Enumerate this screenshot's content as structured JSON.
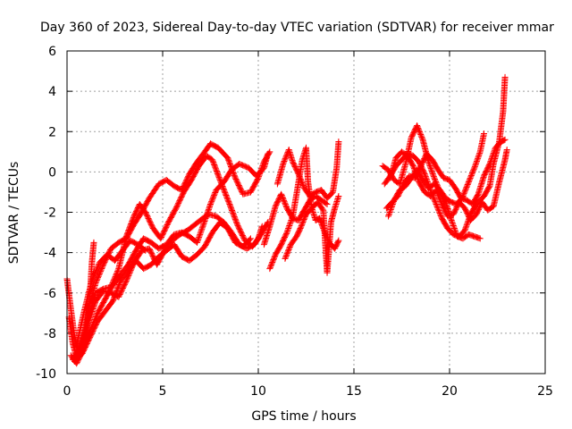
{
  "chart_data": {
    "type": "scatter",
    "title": "Day 360 of 2023, Sidereal Day-to-day VTEC variation (SDTVAR) for receiver mmar",
    "xlabel": "GPS time / hours",
    "ylabel": "SDTVAR / TECUs",
    "xlim": [
      0,
      25
    ],
    "ylim": [
      -10,
      6
    ],
    "xticks": [
      "0",
      "5",
      "10",
      "15",
      "20",
      "25"
    ],
    "yticks": [
      "-10",
      "-8",
      "-6",
      "-4",
      "-2",
      "0",
      "2",
      "4",
      "6"
    ],
    "grid": true,
    "marker": "plus",
    "color": "#ff0000",
    "series": [
      {
        "points": [
          [
            0.0,
            -5.3
          ],
          [
            0.2,
            -6.8
          ],
          [
            0.4,
            -8.2
          ],
          [
            0.6,
            -8.9
          ],
          [
            0.9,
            -8.0
          ],
          [
            1.2,
            -6.5
          ],
          [
            1.5,
            -5.5
          ],
          [
            1.9,
            -4.6
          ],
          [
            2.3,
            -3.8
          ],
          [
            2.7,
            -3.5
          ],
          [
            3.1,
            -3.3
          ],
          [
            3.5,
            -2.6
          ],
          [
            3.9,
            -2.0
          ],
          [
            4.3,
            -1.3
          ],
          [
            4.8,
            -0.6
          ],
          [
            5.2,
            -0.4
          ],
          [
            5.6,
            -0.7
          ],
          [
            6.0,
            -0.9
          ],
          [
            6.4,
            -0.1
          ],
          [
            6.8,
            0.5
          ],
          [
            7.2,
            1.0
          ],
          [
            7.5,
            1.4
          ],
          [
            7.9,
            1.2
          ],
          [
            8.4,
            0.7
          ],
          [
            8.8,
            -0.3
          ],
          [
            9.2,
            -1.1
          ],
          [
            9.6,
            -1.0
          ],
          [
            10.0,
            -0.3
          ],
          [
            10.3,
            0.5
          ],
          [
            10.6,
            1.0
          ]
        ]
      },
      {
        "points": [
          [
            0.1,
            -7.2
          ],
          [
            0.3,
            -8.5
          ],
          [
            0.5,
            -9.2
          ],
          [
            0.8,
            -8.6
          ],
          [
            1.1,
            -7.3
          ],
          [
            1.5,
            -6.0
          ],
          [
            1.9,
            -5.8
          ],
          [
            2.3,
            -5.7
          ],
          [
            2.7,
            -4.8
          ],
          [
            3.1,
            -3.2
          ],
          [
            3.5,
            -2.2
          ],
          [
            3.8,
            -1.6
          ],
          [
            4.1,
            -2.0
          ],
          [
            4.5,
            -2.8
          ],
          [
            4.9,
            -3.3
          ],
          [
            5.3,
            -2.5
          ],
          [
            5.7,
            -1.8
          ],
          [
            6.1,
            -1.0
          ],
          [
            6.5,
            -0.4
          ],
          [
            6.9,
            0.3
          ],
          [
            7.3,
            0.8
          ],
          [
            7.6,
            0.6
          ],
          [
            8.0,
            -0.4
          ],
          [
            8.5,
            -1.6
          ],
          [
            8.9,
            -2.6
          ],
          [
            9.3,
            -3.4
          ],
          [
            9.7,
            -3.7
          ],
          [
            10.0,
            -3.3
          ],
          [
            10.2,
            -2.7
          ]
        ]
      },
      {
        "points": [
          [
            0.2,
            -9.1
          ],
          [
            0.5,
            -9.5
          ],
          [
            0.8,
            -8.9
          ],
          [
            1.2,
            -7.9
          ],
          [
            1.6,
            -7.0
          ],
          [
            2.0,
            -6.3
          ],
          [
            2.4,
            -5.6
          ],
          [
            2.8,
            -5.1
          ],
          [
            3.2,
            -4.6
          ],
          [
            3.6,
            -3.9
          ],
          [
            4.0,
            -3.3
          ],
          [
            4.4,
            -3.5
          ],
          [
            4.8,
            -3.8
          ],
          [
            5.2,
            -3.6
          ],
          [
            5.6,
            -3.1
          ],
          [
            6.0,
            -3.0
          ],
          [
            6.4,
            -3.2
          ],
          [
            6.8,
            -3.5
          ],
          [
            7.1,
            -2.7
          ],
          [
            7.5,
            -1.6
          ],
          [
            7.8,
            -0.9
          ],
          [
            8.2,
            -0.5
          ],
          [
            8.6,
            0.1
          ],
          [
            9.0,
            0.4
          ],
          [
            9.5,
            0.2
          ],
          [
            9.9,
            -0.2
          ],
          [
            10.3,
            0.2
          ],
          [
            10.5,
            0.9
          ]
        ]
      },
      {
        "points": [
          [
            0.3,
            -9.3
          ],
          [
            0.7,
            -8.7
          ],
          [
            1.1,
            -7.5
          ],
          [
            1.5,
            -6.4
          ],
          [
            1.9,
            -5.9
          ],
          [
            2.3,
            -6.0
          ],
          [
            2.7,
            -6.2
          ],
          [
            3.1,
            -5.4
          ],
          [
            3.5,
            -4.5
          ],
          [
            3.9,
            -3.9
          ],
          [
            4.3,
            -3.8
          ],
          [
            4.7,
            -4.6
          ],
          [
            5.1,
            -3.9
          ],
          [
            5.5,
            -3.4
          ],
          [
            5.9,
            -3.1
          ],
          [
            6.3,
            -2.9
          ],
          [
            6.7,
            -2.6
          ],
          [
            7.1,
            -2.3
          ],
          [
            7.4,
            -2.1
          ],
          [
            7.8,
            -2.2
          ],
          [
            8.2,
            -2.5
          ],
          [
            8.6,
            -3.0
          ],
          [
            9.0,
            -3.6
          ],
          [
            9.4,
            -3.8
          ],
          [
            9.8,
            -3.6
          ],
          [
            10.2,
            -3.0
          ],
          [
            10.5,
            -2.5
          ]
        ]
      },
      {
        "points": [
          [
            0.4,
            -9.4
          ],
          [
            0.8,
            -9.0
          ],
          [
            1.2,
            -8.2
          ],
          [
            1.6,
            -7.4
          ],
          [
            2.0,
            -6.9
          ],
          [
            2.4,
            -6.4
          ],
          [
            2.8,
            -5.4
          ],
          [
            3.2,
            -4.9
          ],
          [
            3.6,
            -4.4
          ],
          [
            4.0,
            -4.8
          ],
          [
            4.4,
            -4.6
          ],
          [
            4.8,
            -4.2
          ],
          [
            5.2,
            -3.9
          ],
          [
            5.6,
            -3.6
          ],
          [
            6.0,
            -4.2
          ],
          [
            6.4,
            -4.4
          ],
          [
            6.8,
            -4.1
          ],
          [
            7.2,
            -3.7
          ],
          [
            7.6,
            -3.0
          ],
          [
            8.0,
            -2.5
          ],
          [
            8.4,
            -2.8
          ],
          [
            8.8,
            -3.5
          ],
          [
            9.2,
            -3.7
          ],
          [
            9.6,
            -3.3
          ]
        ]
      },
      {
        "points": [
          [
            0.5,
            -8.6
          ],
          [
            0.9,
            -6.9
          ],
          [
            1.3,
            -5.4
          ],
          [
            1.7,
            -4.5
          ],
          [
            2.1,
            -4.1
          ],
          [
            2.5,
            -4.4
          ],
          [
            2.9,
            -3.9
          ],
          [
            3.3,
            -3.4
          ],
          [
            3.7,
            -3.6
          ],
          [
            4.1,
            -3.9
          ]
        ]
      },
      {
        "points": [
          [
            1.0,
            -8.2
          ],
          [
            1.2,
            -6.1
          ],
          [
            1.3,
            -4.5
          ],
          [
            1.4,
            -3.5
          ]
        ]
      },
      {
        "points": [
          [
            10.3,
            -3.6
          ],
          [
            10.6,
            -2.7
          ],
          [
            10.9,
            -1.7
          ],
          [
            11.2,
            -1.1
          ],
          [
            11.5,
            -1.8
          ],
          [
            11.8,
            -2.3
          ],
          [
            12.1,
            -2.4
          ],
          [
            12.4,
            -1.9
          ],
          [
            12.7,
            -1.4
          ],
          [
            13.0,
            -1.2
          ],
          [
            13.3,
            -1.4
          ],
          [
            13.6,
            -1.6
          ]
        ]
      },
      {
        "points": [
          [
            11.0,
            -0.6
          ],
          [
            11.3,
            0.4
          ],
          [
            11.6,
            1.1
          ],
          [
            11.8,
            0.5
          ],
          [
            12.1,
            -0.1
          ],
          [
            12.4,
            -0.8
          ],
          [
            12.7,
            -1.2
          ],
          [
            13.0,
            -1.0
          ],
          [
            13.3,
            -0.9
          ],
          [
            13.6,
            -1.3
          ],
          [
            13.9,
            -1.0
          ],
          [
            14.1,
            0.2
          ],
          [
            14.2,
            1.5
          ]
        ]
      },
      {
        "points": [
          [
            10.6,
            -4.8
          ],
          [
            10.9,
            -4.1
          ],
          [
            11.2,
            -3.6
          ],
          [
            11.5,
            -3.0
          ],
          [
            11.8,
            -2.2
          ],
          [
            12.0,
            -1.1
          ],
          [
            12.3,
            0.6
          ],
          [
            12.5,
            1.2
          ],
          [
            12.6,
            -0.5
          ],
          [
            12.8,
            -1.8
          ],
          [
            13.0,
            -2.4
          ],
          [
            13.2,
            -2.3
          ],
          [
            13.4,
            -2.8
          ],
          [
            13.7,
            -3.5
          ],
          [
            14.0,
            -3.8
          ],
          [
            14.2,
            -3.4
          ]
        ]
      },
      {
        "points": [
          [
            11.4,
            -4.3
          ],
          [
            11.7,
            -3.6
          ],
          [
            12.0,
            -3.2
          ],
          [
            12.2,
            -2.8
          ],
          [
            12.5,
            -2.1
          ],
          [
            12.8,
            -1.8
          ],
          [
            13.1,
            -1.5
          ],
          [
            13.4,
            -1.9
          ],
          [
            13.5,
            -3.5
          ],
          [
            13.6,
            -5.0
          ],
          [
            13.7,
            -3.8
          ],
          [
            13.8,
            -2.5
          ],
          [
            14.0,
            -1.8
          ],
          [
            14.2,
            -1.2
          ]
        ]
      },
      {
        "points": [
          [
            16.5,
            0.3
          ],
          [
            16.8,
            0.1
          ],
          [
            17.1,
            -0.4
          ],
          [
            17.4,
            -0.6
          ],
          [
            17.7,
            0.4
          ],
          [
            18.0,
            1.7
          ],
          [
            18.3,
            2.3
          ],
          [
            18.6,
            1.6
          ],
          [
            18.9,
            0.5
          ],
          [
            19.2,
            -0.3
          ],
          [
            19.5,
            -1.0
          ],
          [
            19.8,
            -1.5
          ],
          [
            20.1,
            -2.4
          ],
          [
            20.4,
            -3.2
          ],
          [
            20.7,
            -3.3
          ],
          [
            21.0,
            -3.1
          ],
          [
            21.3,
            -3.2
          ],
          [
            21.6,
            -3.3
          ]
        ]
      },
      {
        "points": [
          [
            16.6,
            -0.6
          ],
          [
            16.9,
            -0.2
          ],
          [
            17.2,
            0.3
          ],
          [
            17.5,
            0.6
          ],
          [
            17.8,
            0.9
          ],
          [
            18.1,
            0.8
          ],
          [
            18.4,
            0.5
          ],
          [
            18.7,
            -0.1
          ],
          [
            19.0,
            -0.9
          ],
          [
            19.3,
            -1.6
          ],
          [
            19.6,
            -2.3
          ],
          [
            19.9,
            -2.8
          ],
          [
            20.2,
            -3.1
          ],
          [
            20.5,
            -3.2
          ],
          [
            20.8,
            -2.9
          ],
          [
            21.1,
            -2.1
          ],
          [
            21.4,
            -1.6
          ],
          [
            21.8,
            -1.2
          ],
          [
            22.1,
            -0.7
          ],
          [
            22.3,
            0.4
          ],
          [
            22.6,
            1.5
          ],
          [
            22.8,
            3.0
          ],
          [
            22.9,
            4.7
          ]
        ]
      },
      {
        "points": [
          [
            16.7,
            -1.8
          ],
          [
            17.0,
            -1.5
          ],
          [
            17.3,
            -1.2
          ],
          [
            17.6,
            -0.6
          ],
          [
            17.9,
            -0.2
          ],
          [
            18.2,
            -0.3
          ],
          [
            18.5,
            0.3
          ],
          [
            18.8,
            0.9
          ],
          [
            19.1,
            0.6
          ],
          [
            19.4,
            0.1
          ],
          [
            19.7,
            -0.3
          ],
          [
            20.0,
            -0.4
          ],
          [
            20.3,
            -0.8
          ],
          [
            20.6,
            -1.3
          ],
          [
            20.9,
            -1.4
          ],
          [
            21.2,
            -1.6
          ],
          [
            21.5,
            -1.1
          ],
          [
            21.8,
            -0.2
          ],
          [
            22.1,
            0.4
          ],
          [
            22.4,
            1.2
          ],
          [
            22.7,
            1.5
          ],
          [
            22.9,
            1.6
          ]
        ]
      },
      {
        "points": [
          [
            16.8,
            -2.2
          ],
          [
            17.1,
            -1.4
          ],
          [
            17.4,
            -0.9
          ],
          [
            17.7,
            -0.7
          ],
          [
            18.0,
            -0.3
          ],
          [
            18.3,
            0.1
          ],
          [
            18.6,
            -0.4
          ],
          [
            18.9,
            -0.8
          ],
          [
            19.2,
            -0.6
          ],
          [
            19.5,
            -0.9
          ],
          [
            19.8,
            -1.3
          ],
          [
            20.1,
            -1.5
          ],
          [
            20.4,
            -1.6
          ],
          [
            20.7,
            -1.2
          ],
          [
            21.0,
            -0.5
          ],
          [
            21.3,
            0.2
          ],
          [
            21.6,
            1.0
          ],
          [
            21.8,
            1.9
          ]
        ]
      },
      {
        "points": [
          [
            16.9,
            -0.3
          ],
          [
            17.2,
            0.7
          ],
          [
            17.5,
            1.0
          ],
          [
            17.8,
            0.8
          ],
          [
            18.1,
            0.3
          ],
          [
            18.4,
            -0.5
          ],
          [
            18.7,
            -1.0
          ],
          [
            19.0,
            -1.2
          ],
          [
            19.3,
            -0.9
          ],
          [
            19.6,
            -1.6
          ],
          [
            19.9,
            -2.2
          ],
          [
            20.2,
            -2.1
          ],
          [
            20.5,
            -1.5
          ],
          [
            20.8,
            -1.8
          ],
          [
            21.1,
            -2.4
          ],
          [
            21.4,
            -2.1
          ],
          [
            21.7,
            -1.5
          ],
          [
            22.0,
            -1.9
          ],
          [
            22.3,
            -1.7
          ],
          [
            22.6,
            -0.5
          ],
          [
            22.9,
            0.6
          ],
          [
            23.0,
            1.1
          ]
        ]
      }
    ]
  }
}
